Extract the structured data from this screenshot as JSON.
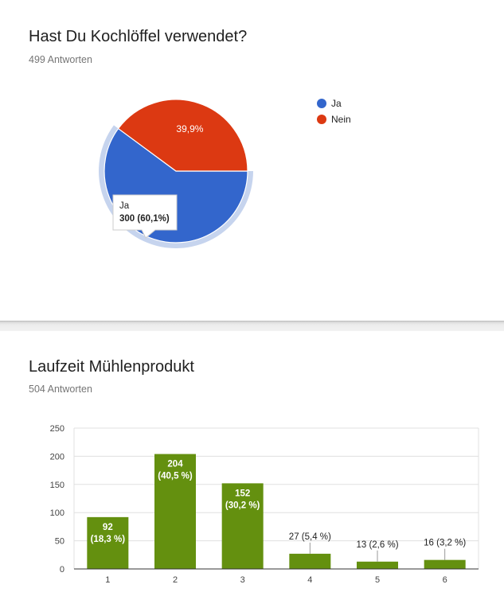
{
  "pie_section": {
    "title": "Hast Du Kochlöffel verwendet?",
    "responses": "499 Antworten"
  },
  "bar_section": {
    "title": "Laufzeit Mühlenprodukt",
    "responses": "504 Antworten"
  },
  "chart_data": [
    {
      "type": "pie",
      "title": "Hast Du Kochlöffel verwendet?",
      "slices": [
        {
          "label": "Ja",
          "value": 300,
          "percent_label": "60,1%",
          "color": "#3366cc"
        },
        {
          "label": "Nein",
          "value": 199,
          "percent_label": "39,9%",
          "color": "#dc3912"
        }
      ],
      "highlight_color": "#c6d4ee",
      "tooltip": {
        "label": "Ja",
        "value_text": "300 (60,1%)"
      },
      "legend": [
        "Ja",
        "Nein"
      ],
      "legend_position": "right"
    },
    {
      "type": "bar",
      "title": "Laufzeit Mühlenprodukt",
      "categories": [
        "1",
        "2",
        "3",
        "4",
        "5",
        "6"
      ],
      "values": [
        92,
        204,
        152,
        27,
        13,
        16
      ],
      "labels": [
        [
          "92",
          "(18,3 %)"
        ],
        [
          "204",
          "(40,5 %)"
        ],
        [
          "152",
          "(30,2 %)"
        ],
        [
          "27 (5,4 %)"
        ],
        [
          "13 (2,6 %)"
        ],
        [
          "16 (3,2 %)"
        ]
      ],
      "ylim": [
        0,
        250
      ],
      "yticks": [
        0,
        50,
        100,
        150,
        200,
        250
      ],
      "color": "#64900f",
      "grid": true
    }
  ]
}
